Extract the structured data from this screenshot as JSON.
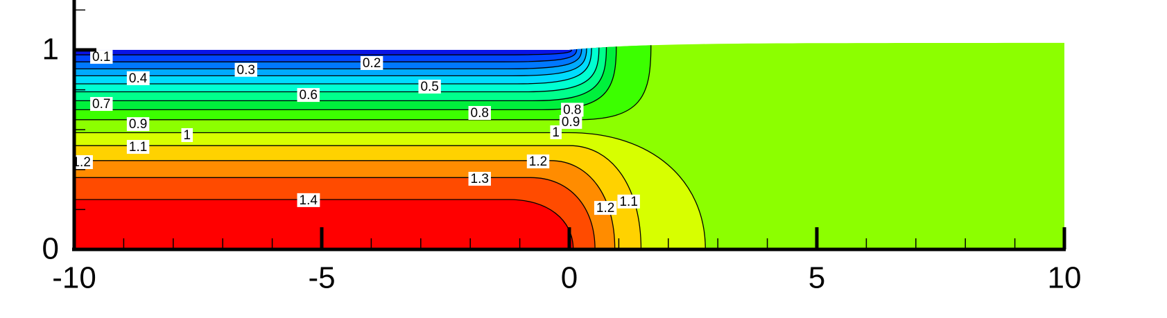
{
  "chart_data": {
    "type": "contour",
    "xlim": [
      -10,
      10
    ],
    "ylim": [
      0,
      1.25
    ],
    "xticks": [
      -10,
      -5,
      0,
      5,
      10
    ],
    "yticks": [
      0,
      1
    ],
    "xminorticks": [
      -9,
      -8,
      -7,
      -6,
      -4,
      -3,
      -2,
      -1,
      1,
      2,
      3,
      4,
      6,
      7,
      8,
      9
    ],
    "yminorticks": [
      0.2,
      0.4,
      0.6,
      0.8,
      1.2
    ],
    "levels": [
      0.1,
      0.2,
      0.3,
      0.4,
      0.5,
      0.6,
      0.7,
      0.8,
      0.9,
      1,
      1.1,
      1.2,
      1.3,
      1.4
    ],
    "band_colors": [
      "#0a14e6",
      "#0046ff",
      "#0078ff",
      "#00aaff",
      "#00dcff",
      "#00ffd2",
      "#00ff8c",
      "#00f03c",
      "#3cff00",
      "#8cff00",
      "#d7ff00",
      "#ffd200",
      "#ff8c00",
      "#ff4b00",
      "#ff0000"
    ],
    "line_color": "#000000",
    "contour_labels": [
      {
        "level": 0.1,
        "x": -9.45,
        "y": 0.965
      },
      {
        "level": 0.2,
        "x": -3.99,
        "y": 0.934
      },
      {
        "level": 0.3,
        "x": -6.53,
        "y": 0.9
      },
      {
        "level": 0.4,
        "x": -8.71,
        "y": 0.858
      },
      {
        "level": 0.5,
        "x": -2.82,
        "y": 0.816
      },
      {
        "level": 0.6,
        "x": -5.27,
        "y": 0.774
      },
      {
        "level": 0.7,
        "x": -9.45,
        "y": 0.729
      },
      {
        "level": 0.8,
        "x": -1.81,
        "y": 0.684
      },
      {
        "level": 0.8,
        "x": 0.06,
        "y": 0.7
      },
      {
        "level": 0.9,
        "x": 0.03,
        "y": 0.639
      },
      {
        "level": 0.9,
        "x": -8.71,
        "y": 0.628
      },
      {
        "level": 1,
        "x": -7.72,
        "y": 0.573
      },
      {
        "level": 1,
        "x": -0.27,
        "y": 0.587
      },
      {
        "level": 1.1,
        "x": -8.71,
        "y": 0.514
      },
      {
        "level": 1.2,
        "x": -9.85,
        "y": 0.4375
      },
      {
        "level": 1.2,
        "x": -0.63,
        "y": 0.441
      },
      {
        "level": 1.3,
        "x": -1.81,
        "y": 0.354
      },
      {
        "level": 1.4,
        "x": -5.27,
        "y": 0.247
      },
      {
        "level": 1.2,
        "x": 0.73,
        "y": 0.208
      },
      {
        "level": 1.1,
        "x": 1.2,
        "y": 0.24
      }
    ]
  }
}
